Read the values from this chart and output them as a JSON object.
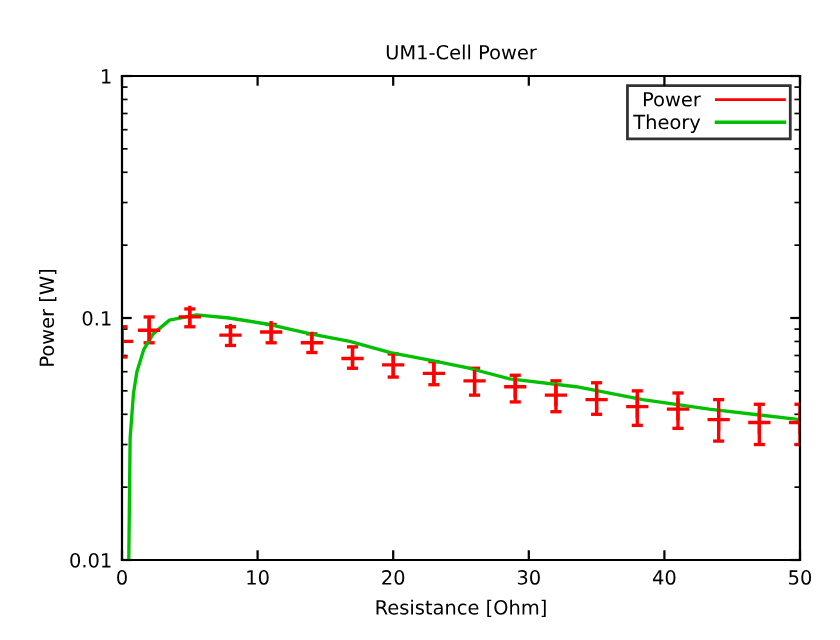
{
  "chart_data": {
    "type": "scatter",
    "title": "UM1-Cell Power",
    "xlabel": "Resistance [Ohm]",
    "ylabel": "Power [W]",
    "log": "y",
    "xlim": [
      0,
      50
    ],
    "xticks": [
      0,
      10,
      20,
      30,
      40,
      50
    ],
    "ylim": [
      0.01,
      1
    ],
    "yticks": [
      0.01,
      0.1,
      1
    ],
    "grid": false,
    "legend": "top right",
    "marker": "cross",
    "series": [
      {
        "name": "Power",
        "color": "#ff0000",
        "x": [
          0,
          2,
          5,
          8,
          11,
          14,
          17,
          20,
          23,
          26,
          29,
          32,
          35,
          38,
          41,
          44,
          47,
          50
        ],
        "values": [
          0.08,
          0.089,
          0.101,
          0.085,
          0.0875,
          0.079,
          0.068,
          0.064,
          0.059,
          0.055,
          0.052,
          0.048,
          0.046,
          0.043,
          0.042,
          0.038,
          0.037,
          0.037
        ],
        "errors": [
          [
            0.069,
            0.092
          ],
          [
            0.079,
            0.101
          ],
          [
            0.092,
            0.109
          ],
          [
            0.077,
            0.092
          ],
          [
            0.079,
            0.094
          ],
          [
            0.072,
            0.086
          ],
          [
            0.062,
            0.076
          ],
          [
            0.057,
            0.071
          ],
          [
            0.053,
            0.066
          ],
          [
            0.048,
            0.062
          ],
          [
            0.045,
            0.058
          ],
          [
            0.041,
            0.055
          ],
          [
            0.04,
            0.054
          ],
          [
            0.036,
            0.05
          ],
          [
            0.035,
            0.049
          ],
          [
            0.031,
            0.046
          ],
          [
            0.03,
            0.044
          ],
          [
            0.03,
            0.044
          ]
        ]
      },
      {
        "name": "Theory",
        "type": "line",
        "color": "#00c000",
        "line_style": "solid",
        "marker": "none",
        "x": [
          0.5,
          0.6,
          0.85,
          1.1,
          1.6,
          2.3,
          3.5,
          5.5,
          7.9,
          10.9,
          13.9,
          16.8,
          19.8,
          22.7,
          25.6,
          28.6,
          33.5,
          38.4,
          43.3,
          50
        ],
        "values": [
          0.01,
          0.032,
          0.049,
          0.06,
          0.074,
          0.086,
          0.098,
          0.103,
          0.1,
          0.094,
          0.086,
          0.08,
          0.072,
          0.067,
          0.062,
          0.056,
          0.052,
          0.046,
          0.042,
          0.038
        ]
      }
    ]
  }
}
